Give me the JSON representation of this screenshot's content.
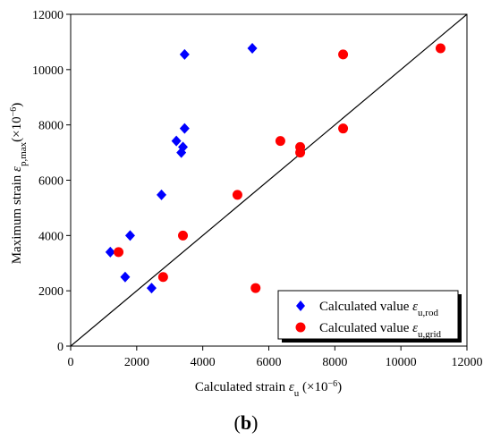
{
  "chart_data": {
    "type": "scatter",
    "panel_label": {
      "open": "(",
      "letter": "b",
      "close": ")"
    },
    "xlabel": {
      "prefix": "Calculated strain ",
      "symbol": "ε",
      "sub": "u",
      "unit_open": " (×10",
      "unit_exp": "−6",
      "unit_close": ")"
    },
    "ylabel": {
      "prefix": "Maximum strain ",
      "symbol": "ε",
      "sub": "p,max",
      "unit_open": "(×10",
      "unit_exp": "−6",
      "unit_close": ")"
    },
    "xlim": [
      0,
      12000
    ],
    "ylim": [
      0,
      12000
    ],
    "xticks": [
      0,
      2000,
      4000,
      6000,
      8000,
      10000,
      12000
    ],
    "yticks": [
      0,
      2000,
      4000,
      6000,
      8000,
      10000,
      12000
    ],
    "grid": false,
    "legend_position": "bottom-right",
    "reference_line": {
      "from": [
        0,
        0
      ],
      "to": [
        12000,
        12000
      ]
    },
    "series": [
      {
        "name_prefix": "Calculated value ",
        "name_symbol": "ε",
        "name_sub": "u,rod",
        "marker": "diamond",
        "color": "#0000ff",
        "points": [
          {
            "x": 1200,
            "y": 3400
          },
          {
            "x": 1650,
            "y": 2500
          },
          {
            "x": 1800,
            "y": 4000
          },
          {
            "x": 2450,
            "y": 2100
          },
          {
            "x": 2750,
            "y": 5470
          },
          {
            "x": 3200,
            "y": 7420
          },
          {
            "x": 3350,
            "y": 7000
          },
          {
            "x": 3400,
            "y": 7200
          },
          {
            "x": 3450,
            "y": 7870
          },
          {
            "x": 3450,
            "y": 10550
          },
          {
            "x": 5500,
            "y": 10770
          }
        ]
      },
      {
        "name_prefix": "Calculated value ",
        "name_symbol": "ε",
        "name_sub": "u,grid",
        "marker": "circle",
        "color": "#ff0000",
        "points": [
          {
            "x": 1450,
            "y": 3400
          },
          {
            "x": 2800,
            "y": 2500
          },
          {
            "x": 3400,
            "y": 4000
          },
          {
            "x": 5050,
            "y": 5470
          },
          {
            "x": 5600,
            "y": 2100
          },
          {
            "x": 6350,
            "y": 7420
          },
          {
            "x": 6950,
            "y": 7000
          },
          {
            "x": 6950,
            "y": 7200
          },
          {
            "x": 8250,
            "y": 7870
          },
          {
            "x": 8250,
            "y": 10550
          },
          {
            "x": 11200,
            "y": 10770
          }
        ]
      }
    ]
  }
}
